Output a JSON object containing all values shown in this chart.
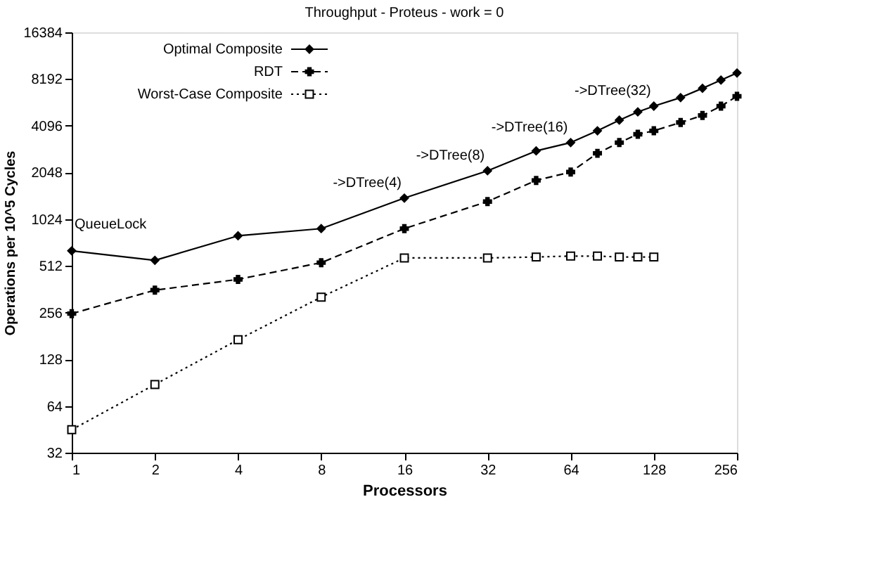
{
  "chart_data": {
    "type": "line",
    "title": "Throughput - Proteus - work = 0",
    "xlabel": "Processors",
    "ylabel": "Operations per 10^5 Cycles",
    "log": "xy",
    "grid": false,
    "legend": "top left",
    "xlim": [
      1,
      256
    ],
    "xticks": [
      1,
      2,
      4,
      8,
      16,
      32,
      64,
      128,
      256
    ],
    "ylim": [
      32,
      16384
    ],
    "yticks": [
      32,
      64,
      128,
      256,
      512,
      1024,
      2048,
      4096,
      8192,
      16384
    ],
    "series": [
      {
        "name": "Optimal Composite",
        "color": "#000000",
        "marker": "diamond",
        "line_style": "solid",
        "x": [
          1,
          2,
          4,
          8,
          16,
          32,
          48,
          64,
          80,
          96,
          112,
          128,
          160,
          192,
          224,
          256
        ],
        "values": [
          640,
          556,
          800,
          890,
          1400,
          2100,
          2820,
          3190,
          3800,
          4450,
          5030,
          5480,
          6220,
          7140,
          8070,
          8960
        ]
      },
      {
        "name": "RDT",
        "color": "#000000",
        "marker": "cross",
        "line_style": "dashed",
        "x": [
          1,
          2,
          4,
          8,
          16,
          32,
          48,
          64,
          80,
          96,
          112,
          128,
          160,
          192,
          224,
          256
        ],
        "values": [
          252,
          357,
          419,
          537,
          890,
          1330,
          1820,
          2060,
          2720,
          3190,
          3610,
          3800,
          4300,
          4770,
          5480,
          6340
        ]
      },
      {
        "name": "Worst-Case Composite",
        "color": "#000000",
        "marker": "square",
        "line_style": "dotted",
        "x": [
          1,
          2,
          4,
          8,
          16,
          32,
          48,
          64,
          80,
          96,
          112,
          128
        ],
        "values": [
          45,
          88,
          171,
          322,
          576,
          576,
          584,
          592,
          592,
          584,
          584,
          584
        ]
      }
    ],
    "annotations": [
      {
        "text": "QueueLock",
        "x": 1,
        "y": 640
      },
      {
        "text": "->DTree(4)",
        "x": 16,
        "y": 1400
      },
      {
        "text": "->DTree(8)",
        "x": 32,
        "y": 2100
      },
      {
        "text": "->DTree(16)",
        "x": 64,
        "y": 3190
      },
      {
        "text": "->DTree(32)",
        "x": 128,
        "y": 5480
      }
    ]
  }
}
